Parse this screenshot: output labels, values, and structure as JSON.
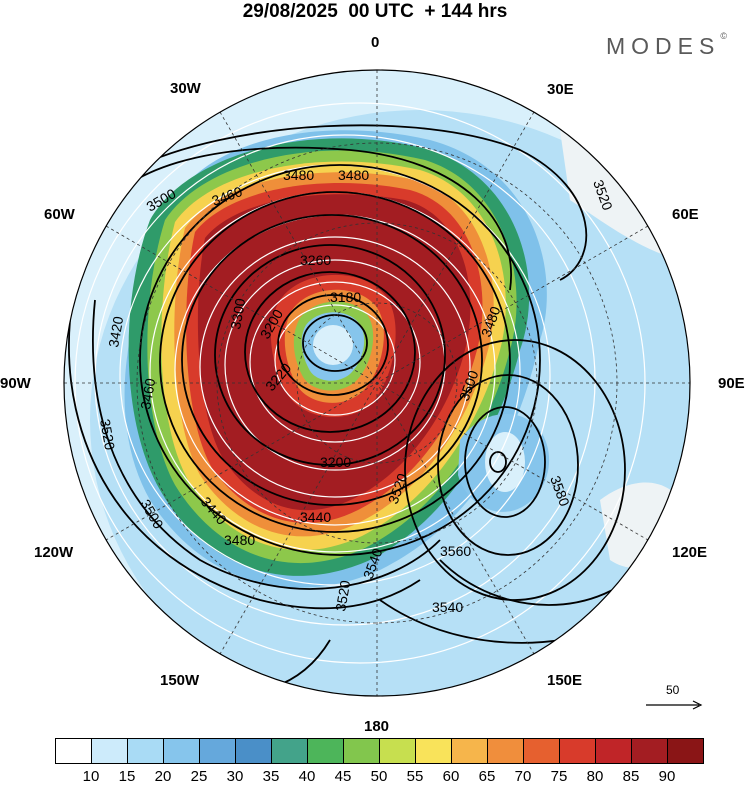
{
  "title": "29/08/2025  00 UTC  + 144 hrs",
  "logo": {
    "text": "MODES",
    "mark": "©"
  },
  "map": {
    "projection": "south-polar-stereographic",
    "longitude_labels": [
      "0",
      "30E",
      "60E",
      "90E",
      "120E",
      "150E",
      "180",
      "150W",
      "120W",
      "90W",
      "60W",
      "30W"
    ],
    "contour_labels": [
      "3480",
      "3480",
      "3500",
      "3460",
      "3260",
      "3180",
      "3200",
      "3220",
      "3200",
      "3460",
      "3440",
      "3480",
      "3500",
      "3520",
      "3540",
      "3560",
      "3520",
      "3540",
      "3580",
      "3480",
      "3500",
      "3520",
      "3440",
      "3420",
      "3300",
      "3520"
    ],
    "vector_reference": {
      "value": "50",
      "icon": "arrow-right-icon"
    }
  },
  "colorbar": {
    "labels": [
      "10",
      "15",
      "20",
      "25",
      "30",
      "35",
      "40",
      "45",
      "50",
      "55",
      "60",
      "65",
      "70",
      "75",
      "80",
      "85",
      "90"
    ],
    "colors": [
      "#ffffff",
      "#cdebfb",
      "#a9dbf5",
      "#86c5ec",
      "#65a8dc",
      "#4a8fc8",
      "#43a38a",
      "#4db55a",
      "#82c64d",
      "#c7df4f",
      "#f9e35a",
      "#f6b54b",
      "#f08e3c",
      "#e6602f",
      "#d83b2b",
      "#c02528",
      "#a31d22",
      "#8a1516"
    ]
  }
}
